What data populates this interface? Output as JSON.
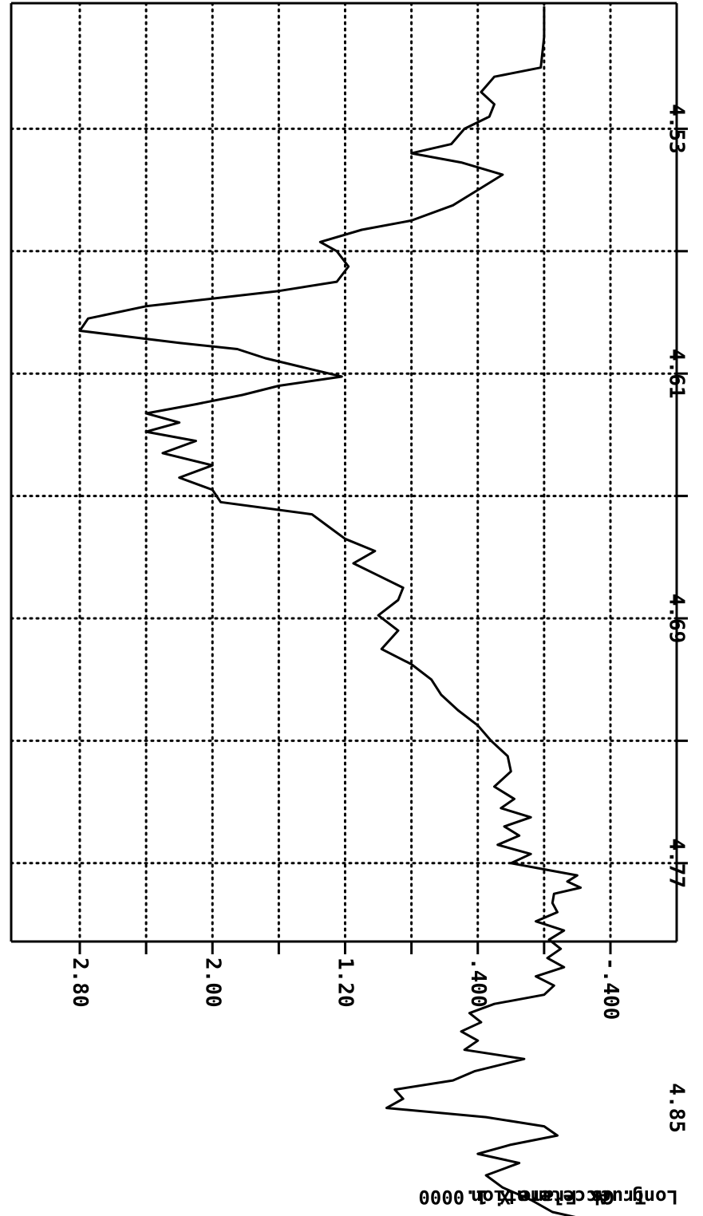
{
  "chart_data": {
    "type": "line",
    "orientation": "rotated-90-clockwise",
    "title": "",
    "xlabel": "",
    "ylabel": "",
    "x_ticks": [
      "4.53",
      "4.61",
      "4.69",
      "4.77",
      "4.85"
    ],
    "y_ticks": [
      "2.80",
      "2.00",
      "1.20",
      ".400",
      "-.400"
    ],
    "xlim": [
      4.49,
      4.89
    ],
    "ylim": [
      -0.8,
      3.2
    ],
    "grid": true,
    "caption_lines": [
      "Long. Acceleration",
      "Truck Frame",
      "Gs       X 1.0000"
    ],
    "series": [
      {
        "x": [
          4.49,
          4.5,
          4.51,
          4.513,
          4.518,
          4.522,
          4.526,
          4.53,
          4.535,
          4.538,
          4.541,
          4.545,
          4.55,
          4.555,
          4.56,
          4.563,
          4.567,
          4.57,
          4.575,
          4.58,
          4.583,
          4.588,
          4.592,
          4.596,
          4.6,
          4.602,
          4.605,
          4.608,
          4.611,
          4.614,
          4.617,
          4.62,
          4.623,
          4.626,
          4.629,
          4.632,
          4.636,
          4.64,
          4.644,
          4.648,
          4.652,
          4.656,
          4.66,
          4.664,
          4.668,
          4.672,
          4.676,
          4.68,
          4.684,
          4.689,
          4.694,
          4.7,
          4.705,
          4.71,
          4.715,
          4.72,
          4.725,
          4.73,
          4.735,
          4.74,
          4.745,
          4.749,
          4.752,
          4.755,
          4.758,
          4.761,
          4.764,
          4.767,
          4.77,
          4.772,
          4.774,
          4.776,
          4.778,
          4.78,
          4.783,
          4.786,
          4.789,
          4.792,
          4.795,
          4.798,
          4.801,
          4.804,
          4.807,
          4.81,
          4.813,
          4.816,
          4.819,
          4.822,
          4.825,
          4.828,
          4.831,
          4.834,
          4.838,
          4.841,
          4.844,
          4.847,
          4.85,
          4.853,
          4.856,
          4.859,
          4.862,
          4.865,
          4.868,
          4.872,
          4.876,
          4.88,
          4.884,
          4.888
        ],
        "y": [
          0.0,
          0.0,
          0.02,
          0.3,
          0.38,
          0.3,
          0.33,
          0.48,
          0.56,
          0.8,
          0.5,
          0.25,
          0.4,
          0.55,
          0.8,
          1.1,
          1.35,
          1.25,
          1.18,
          1.25,
          1.6,
          2.4,
          2.75,
          2.8,
          2.2,
          1.85,
          1.68,
          1.45,
          1.22,
          1.6,
          1.82,
          2.1,
          2.4,
          2.2,
          2.4,
          2.1,
          2.3,
          2.0,
          2.2,
          2.0,
          1.95,
          1.4,
          1.3,
          1.2,
          1.02,
          1.15,
          1.0,
          0.85,
          0.88,
          1.0,
          0.88,
          0.98,
          0.8,
          0.68,
          0.62,
          0.52,
          0.4,
          0.32,
          0.22,
          0.2,
          0.3,
          0.18,
          0.26,
          0.08,
          0.24,
          0.15,
          0.28,
          0.08,
          0.2,
          0.0,
          -0.2,
          -0.14,
          -0.22,
          -0.06,
          -0.05,
          -0.08,
          0.05,
          -0.12,
          -0.03,
          -0.1,
          -0.02,
          -0.12,
          0.05,
          -0.06,
          0.0,
          0.3,
          0.45,
          0.38,
          0.5,
          0.4,
          0.48,
          0.12,
          0.42,
          0.55,
          0.9,
          0.85,
          0.95,
          0.35,
          0.0,
          -0.08,
          0.2,
          0.4,
          0.15,
          0.35,
          0.25,
          0.08,
          -0.05,
          -0.38
        ]
      }
    ]
  }
}
